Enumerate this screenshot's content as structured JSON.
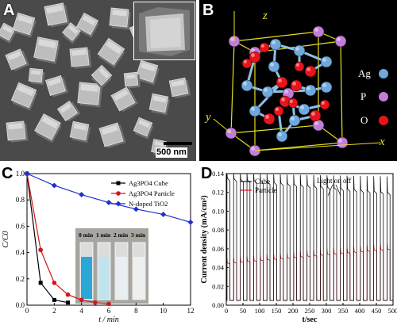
{
  "figure": {
    "panels": {
      "a": {
        "label": "A",
        "scale_bar": "500 nm",
        "colors": {
          "background": "#4a4a4a",
          "crystal_face": "#bdbdbd",
          "crystal_top": "#e6e6e6",
          "crystal_shadow": "#6e6e6e"
        }
      },
      "b": {
        "label": "B",
        "axes": {
          "x": "x",
          "y": "y",
          "z": "z"
        },
        "legend": [
          {
            "label": "Ag",
            "color": "#6fa8dc"
          },
          {
            "label": "P",
            "color": "#c27ddb"
          },
          {
            "label": "O",
            "color": "#e8141a"
          }
        ],
        "colors": {
          "background": "#000000",
          "cell_edge": "#e8e020",
          "bond": "#8fc0e8"
        }
      },
      "c": {
        "label": "C"
      },
      "d": {
        "label": "D"
      }
    }
  },
  "chart_data": [
    {
      "type": "line",
      "panel": "C",
      "xlabel": "t / min",
      "ylabel": "C/C0",
      "xlim": [
        0,
        12
      ],
      "ylim": [
        0,
        1.0
      ],
      "xticks": [
        0,
        2,
        4,
        6,
        8,
        10,
        12
      ],
      "yticks": [
        0.0,
        0.2,
        0.4,
        0.6,
        0.8,
        1.0
      ],
      "legend_placement": "top-right",
      "series": [
        {
          "name": "Ag3PO4 Cube",
          "color": "#000000",
          "marker": "square",
          "x": [
            0,
            1,
            2,
            3
          ],
          "y": [
            1.0,
            0.17,
            0.04,
            0.02
          ]
        },
        {
          "name": "Ag3PO4 Particle",
          "color": "#d4141a",
          "marker": "circle",
          "x": [
            0,
            1,
            2,
            3,
            4,
            5,
            6
          ],
          "y": [
            1.0,
            0.42,
            0.17,
            0.08,
            0.04,
            0.02,
            0.01
          ]
        },
        {
          "name": "N-doped TiO2",
          "color": "#1f2fd0",
          "marker": "diamond",
          "x": [
            0,
            2,
            4,
            6,
            8,
            10,
            12
          ],
          "y": [
            1.0,
            0.91,
            0.84,
            0.78,
            0.73,
            0.69,
            0.63
          ]
        }
      ],
      "inset": {
        "labels": [
          "0 min",
          "1 min",
          "2 min",
          "3 min"
        ],
        "vial_colors": [
          "#2aa7d6",
          "#bfe4ee",
          "#e9eef0",
          "#eef0f0"
        ],
        "background": "#a7a59f"
      }
    },
    {
      "type": "line",
      "panel": "D",
      "xlabel": "t/sec",
      "ylabel": "Current density (mA/cm²)",
      "xlim": [
        0,
        500
      ],
      "ylim": [
        0,
        0.14
      ],
      "xticks": [
        0,
        50,
        100,
        150,
        200,
        250,
        300,
        350,
        400,
        450,
        500
      ],
      "yticks": [
        0.0,
        0.02,
        0.04,
        0.06,
        0.08,
        0.1,
        0.12,
        0.14
      ],
      "annotation": "Light on off",
      "legend_placement": "top-left",
      "cycle_period_sec": 20,
      "dark_current": 0.005,
      "series": [
        {
          "name": "Cube",
          "color": "#111111",
          "on_start": 0.135,
          "on_end": 0.12,
          "peak_start": 0.14,
          "peak_end": 0.137
        },
        {
          "name": "Particle",
          "color": "#d4141a",
          "on_start": 0.045,
          "on_end": 0.06,
          "peak_start": 0.05,
          "peak_end": 0.066
        }
      ]
    }
  ]
}
